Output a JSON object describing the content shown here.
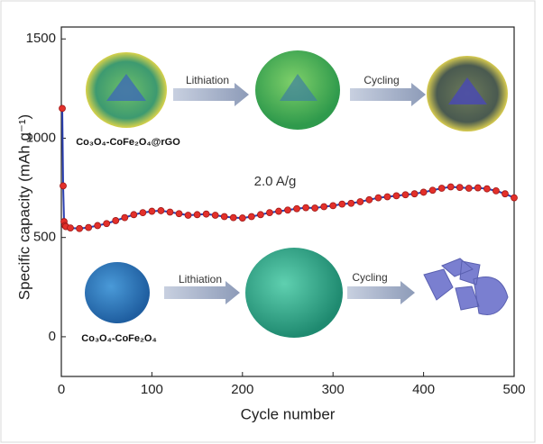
{
  "chart_data": {
    "type": "line",
    "x_label": "Cycle number",
    "y_label": "Specific capacity (mAh g⁻¹)",
    "x": [
      1,
      2,
      3,
      4,
      5,
      10,
      20,
      30,
      40,
      50,
      60,
      70,
      80,
      90,
      100,
      110,
      120,
      130,
      140,
      150,
      160,
      170,
      180,
      190,
      200,
      210,
      220,
      230,
      240,
      250,
      260,
      270,
      280,
      290,
      300,
      310,
      320,
      330,
      340,
      350,
      360,
      370,
      380,
      390,
      400,
      410,
      420,
      430,
      440,
      450,
      460,
      470,
      480,
      490,
      500
    ],
    "series": [
      {
        "color": "#e3302a",
        "values": [
          1150,
          760,
          580,
          560,
          555,
          548,
          545,
          550,
          560,
          570,
          585,
          600,
          615,
          625,
          632,
          635,
          628,
          620,
          612,
          615,
          618,
          612,
          605,
          600,
          598,
          605,
          615,
          625,
          632,
          638,
          645,
          650,
          648,
          655,
          660,
          668,
          672,
          680,
          690,
          700,
          705,
          710,
          715,
          720,
          728,
          738,
          748,
          755,
          752,
          748,
          750,
          745,
          735,
          720,
          700
        ]
      }
    ],
    "xlim": [
      0,
      500
    ],
    "xticks": [
      0,
      100,
      200,
      300,
      400,
      500
    ],
    "ylim": [
      -200,
      1560
    ],
    "yticks": [
      0,
      500,
      1000,
      1500
    ],
    "grid": false,
    "annotations": [
      "2.0 A/g",
      "Lithiation",
      "Cycling",
      "Co₃O₄-CoFe₂O₄@rGO",
      "Lithiation",
      "Cycling",
      "Co₃O₄-CoFe₂O₄"
    ]
  }
}
